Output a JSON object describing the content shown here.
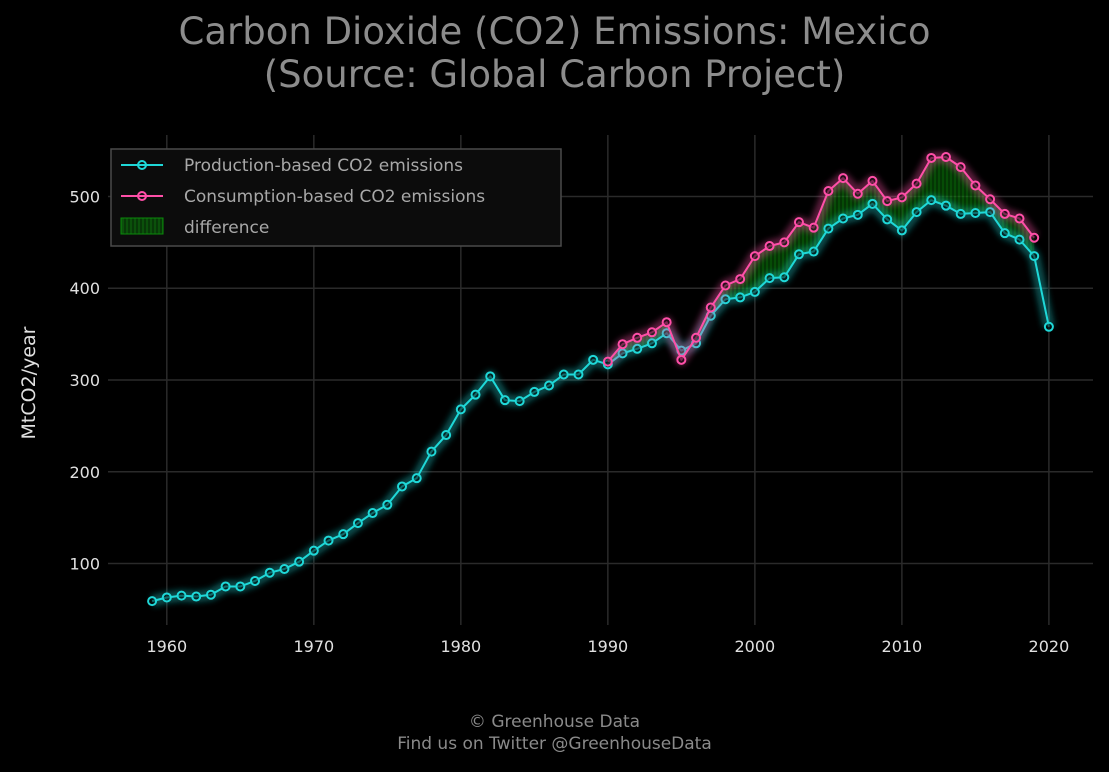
{
  "title_line1": "Carbon Dioxide (CO2) Emissions: Mexico",
  "title_line2": "(Source: Global Carbon Project)",
  "footer_line1": "© Greenhouse Data",
  "footer_line2": "Find us on Twitter @GreenhouseData",
  "colors": {
    "background": "#000000",
    "production": "#1fd8d8",
    "consumption": "#ff4fa8",
    "difference": "#0a8a0a",
    "grid": "#2a2a2a"
  },
  "chart_data": {
    "type": "line",
    "title": "Carbon Dioxide (CO2) Emissions: Mexico (Source: Global Carbon Project)",
    "xlabel": "",
    "ylabel": "MtCO2/year",
    "xlim": [
      1956,
      2023
    ],
    "ylim": [
      33,
      567
    ],
    "xticks": [
      1960,
      1970,
      1980,
      1990,
      2000,
      2010,
      2020
    ],
    "yticks": [
      100,
      200,
      300,
      400,
      500
    ],
    "grid": true,
    "legend_position": "top-left",
    "legend": [
      "Production-based CO2 emissions",
      "Consumption-based CO2 emissions",
      "difference"
    ],
    "series": [
      {
        "name": "Production-based CO2 emissions",
        "x": [
          1959,
          1960,
          1961,
          1962,
          1963,
          1964,
          1965,
          1966,
          1967,
          1968,
          1969,
          1970,
          1971,
          1972,
          1973,
          1974,
          1975,
          1976,
          1977,
          1978,
          1979,
          1980,
          1981,
          1982,
          1983,
          1984,
          1985,
          1986,
          1987,
          1988,
          1989,
          1990,
          1991,
          1992,
          1993,
          1994,
          1995,
          1996,
          1997,
          1998,
          1999,
          2000,
          2001,
          2002,
          2003,
          2004,
          2005,
          2006,
          2007,
          2008,
          2009,
          2010,
          2011,
          2012,
          2013,
          2014,
          2015,
          2016,
          2017,
          2018,
          2019,
          2020
        ],
        "y": [
          59,
          63,
          65,
          64,
          66,
          75,
          75,
          81,
          90,
          94,
          102,
          114,
          125,
          132,
          144,
          155,
          164,
          184,
          193,
          222,
          240,
          268,
          284,
          304,
          278,
          277,
          287,
          294,
          306,
          306,
          322,
          317,
          329,
          334,
          340,
          351,
          332,
          340,
          370,
          388,
          390,
          396,
          411,
          412,
          437,
          440,
          465,
          476,
          480,
          492,
          475,
          463,
          483,
          496,
          490,
          481,
          482,
          483,
          460,
          453,
          435,
          358
        ]
      },
      {
        "name": "Consumption-based CO2 emissions",
        "x": [
          1990,
          1991,
          1992,
          1993,
          1994,
          1995,
          1996,
          1997,
          1998,
          1999,
          2000,
          2001,
          2002,
          2003,
          2004,
          2005,
          2006,
          2007,
          2008,
          2009,
          2010,
          2011,
          2012,
          2013,
          2014,
          2015,
          2016,
          2017,
          2018,
          2019
        ],
        "y": [
          320,
          339,
          346,
          352,
          363,
          322,
          346,
          379,
          403,
          410,
          435,
          446,
          450,
          472,
          466,
          506,
          520,
          503,
          517,
          495,
          499,
          514,
          542,
          543,
          532,
          512,
          497,
          481,
          476,
          455
        ]
      }
    ]
  }
}
